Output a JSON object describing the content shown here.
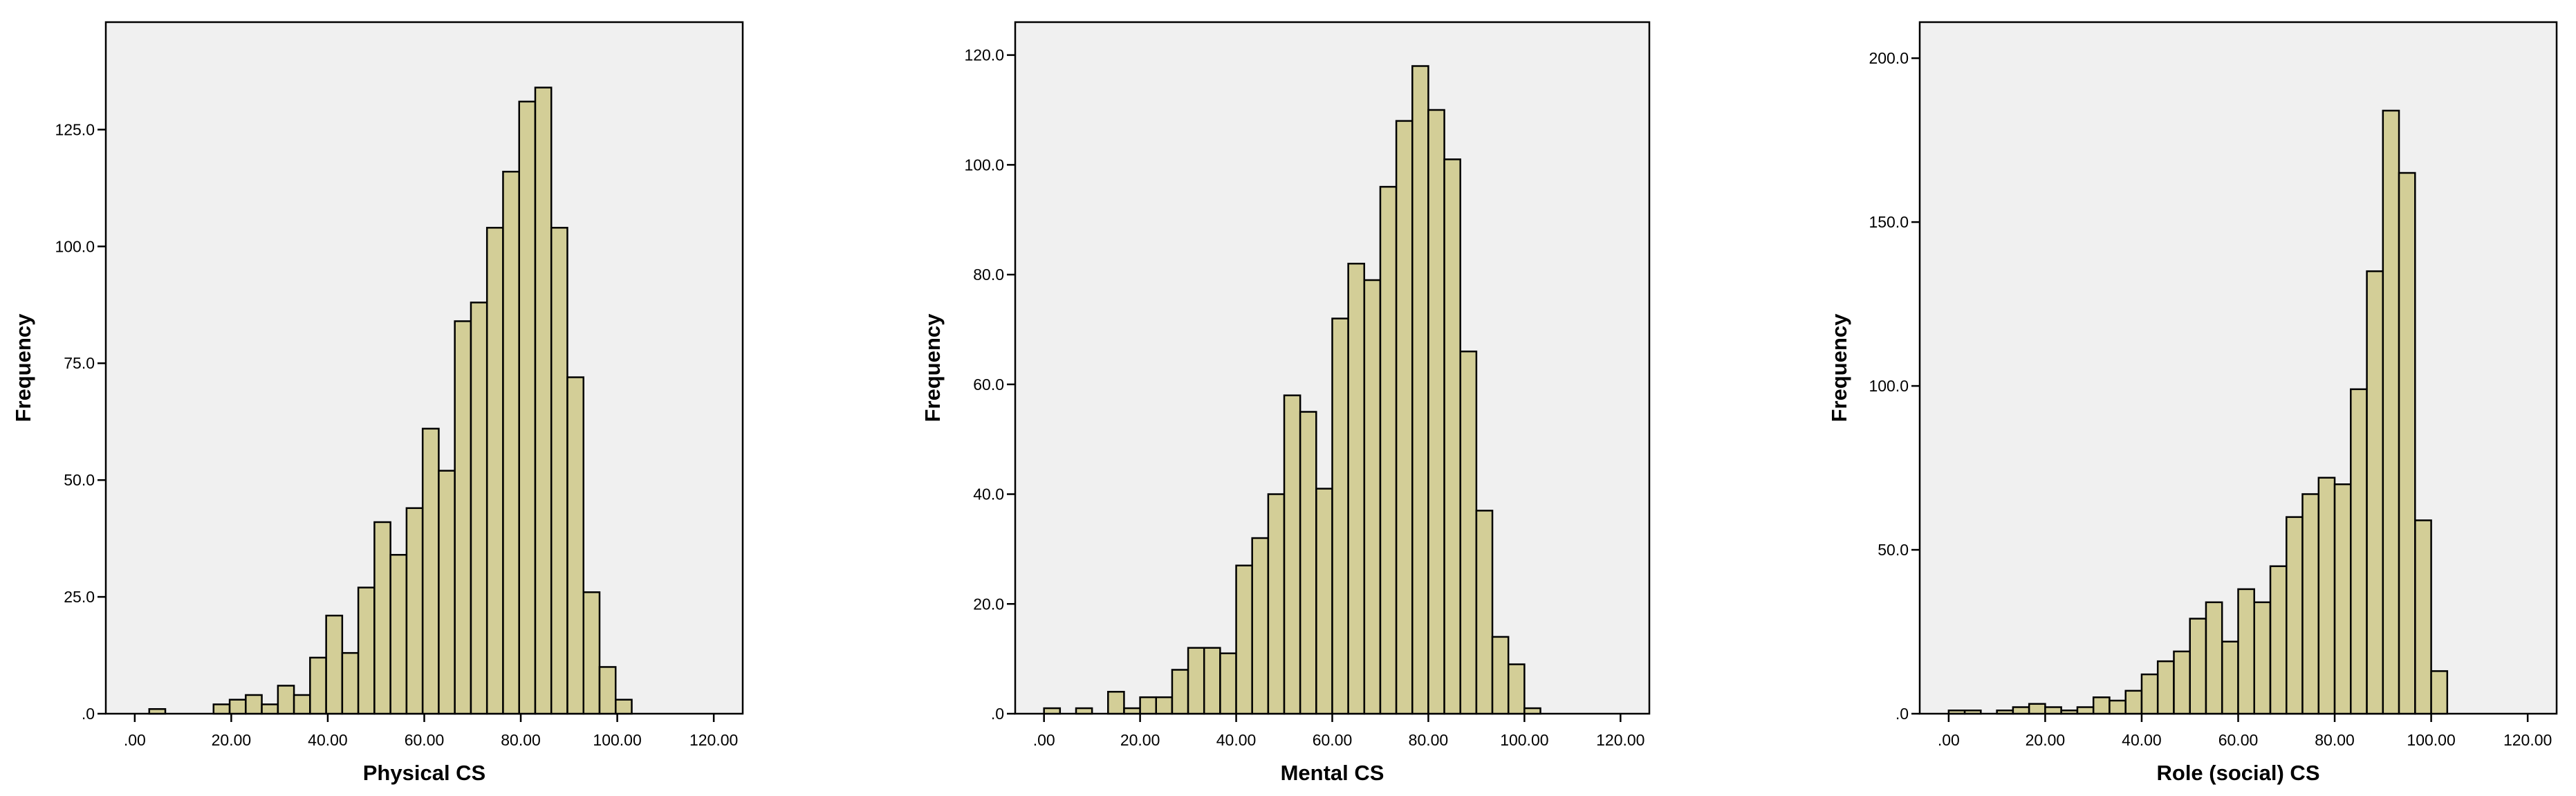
{
  "colors": {
    "plot_background": "#f0f0f0",
    "bar_fill": "#d3ce97",
    "bar_edge": "#000000"
  },
  "chart_data": [
    {
      "type": "bar",
      "xlabel": "Physical CS",
      "ylabel": "Frequency",
      "x_ticks": [
        ".00",
        "20.00",
        "40.00",
        "60.00",
        "80.00",
        "100.00",
        "120.00"
      ],
      "y_ticks": [
        ".0",
        "25.0",
        "50.0",
        "75.0",
        "100.0",
        "125.0"
      ],
      "xlim": [
        -6,
        126
      ],
      "ylim": [
        0,
        148
      ],
      "bin_width": 3.33,
      "bin_starts": [
        3.0,
        6.33,
        9.67,
        13.0,
        16.33,
        19.67,
        23.0,
        26.33,
        29.67,
        33.0,
        36.33,
        39.67,
        43.0,
        46.33,
        49.67,
        53.0,
        56.33,
        59.67,
        63.0,
        66.33,
        69.67,
        73.0,
        76.33,
        79.67,
        83.0,
        86.33,
        89.67,
        93.0,
        96.33,
        99.67,
        103.0
      ],
      "values": [
        1,
        0,
        0,
        0,
        2,
        3,
        4,
        2,
        6,
        4,
        12,
        21,
        13,
        27,
        41,
        34,
        44,
        61,
        52,
        84,
        88,
        104,
        116,
        131,
        134,
        104,
        72,
        26,
        10,
        3,
        0
      ]
    },
    {
      "type": "bar",
      "xlabel": "Mental CS",
      "ylabel": "Frequency",
      "x_ticks": [
        ".00",
        "20.00",
        "40.00",
        "60.00",
        "80.00",
        "100.00",
        "120.00"
      ],
      "y_ticks": [
        ".0",
        "20.0",
        "40.0",
        "60.0",
        "80.0",
        "100.0",
        "120.0"
      ],
      "xlim": [
        -6,
        126
      ],
      "ylim": [
        0,
        126
      ],
      "bin_width": 3.33,
      "bin_starts": [
        0.0,
        3.33,
        6.67,
        10.0,
        13.33,
        16.67,
        20.0,
        23.33,
        26.67,
        30.0,
        33.33,
        36.67,
        40.0,
        43.33,
        46.67,
        50.0,
        53.33,
        56.67,
        60.0,
        63.33,
        66.67,
        70.0,
        73.33,
        76.67,
        80.0,
        83.33,
        86.67,
        90.0,
        93.33,
        96.67,
        100.0
      ],
      "values": [
        1,
        0,
        1,
        0,
        4,
        1,
        3,
        3,
        8,
        12,
        12,
        11,
        27,
        32,
        40,
        58,
        55,
        41,
        72,
        82,
        79,
        96,
        108,
        118,
        110,
        101,
        66,
        37,
        14,
        9,
        1
      ]
    },
    {
      "type": "bar",
      "xlabel": "Role (social) CS",
      "ylabel": "Frequency",
      "x_ticks": [
        ".00",
        "20.00",
        "40.00",
        "60.00",
        "80.00",
        "100.00",
        "120.00"
      ],
      "y_ticks": [
        ".0",
        "50.0",
        "100.0",
        "150.0",
        "200.0"
      ],
      "xlim": [
        -6,
        126
      ],
      "ylim": [
        0,
        211
      ],
      "bin_width": 3.33,
      "bin_starts": [
        0.0,
        3.33,
        6.67,
        10.0,
        13.33,
        16.67,
        20.0,
        23.33,
        26.67,
        30.0,
        33.33,
        36.67,
        40.0,
        43.33,
        46.67,
        50.0,
        53.33,
        56.67,
        60.0,
        63.33,
        66.67,
        70.0,
        73.33,
        76.67,
        80.0,
        83.33,
        86.67,
        90.0,
        93.33,
        96.67,
        100.0
      ],
      "values": [
        1,
        1,
        0,
        1,
        2,
        3,
        2,
        1,
        2,
        5,
        4,
        7,
        12,
        16,
        19,
        29,
        34,
        22,
        38,
        34,
        45,
        60,
        67,
        72,
        70,
        99,
        135,
        184,
        165,
        59,
        13
      ]
    }
  ]
}
